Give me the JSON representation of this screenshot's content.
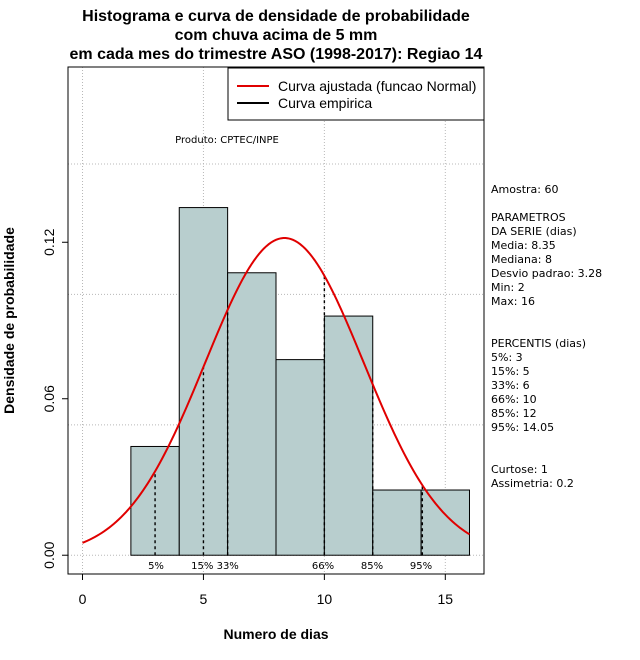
{
  "chart_data": {
    "type": "histogram",
    "title_lines": [
      "Histograma e curva de densidade de probabilidade",
      "com chuva acima de 5 mm",
      "em cada mes do trimestre ASO (1998-2017): Regiao 14"
    ],
    "xlabel": "Numero de dias",
    "ylabel": "Densidade de probabilidade",
    "xlim": [
      -0.6,
      16.6
    ],
    "ylim": [
      -0.0072,
      0.1872
    ],
    "x_ticks": [
      0,
      5,
      10,
      15
    ],
    "y_ticks": [
      0.0,
      0.06,
      0.12
    ],
    "y_tick_labels": [
      "0.00",
      "0.06",
      "0.12"
    ],
    "bins": [
      {
        "from": 2,
        "to": 4,
        "density": 0.0417
      },
      {
        "from": 4,
        "to": 6,
        "density": 0.1333
      },
      {
        "from": 6,
        "to": 8,
        "density": 0.1083
      },
      {
        "from": 8,
        "to": 10,
        "density": 0.075
      },
      {
        "from": 10,
        "to": 12,
        "density": 0.0917
      },
      {
        "from": 12,
        "to": 14,
        "density": 0.025
      },
      {
        "from": 14,
        "to": 16,
        "density": 0.025
      }
    ],
    "bar_color": "#b8cece",
    "normal_curve": {
      "mean": 8.35,
      "sd": 3.28,
      "from": 0,
      "to": 16,
      "color": "#e00000"
    },
    "percentile_lines": [
      {
        "label": "5%",
        "value": 3
      },
      {
        "label": "15%",
        "value": 5
      },
      {
        "label": "33%",
        "value": 6
      },
      {
        "label": "66%",
        "value": 10
      },
      {
        "label": "85%",
        "value": 12
      },
      {
        "label": "95%",
        "value": 14.05
      }
    ],
    "percentile_label_row": [
      "5%",
      "15% 33%",
      "66%",
      "85%",
      "95%"
    ],
    "legend": [
      {
        "label": "Curva ajustada (funcao Normal)",
        "color": "#e00000"
      },
      {
        "label": "Curva empirica",
        "color": "#000000"
      }
    ],
    "source_note": "Produto: CPTEC/INPE",
    "stats_panel": [
      "Amostra: 60",
      "",
      " PARAMETROS",
      "DA SERIE (dias)",
      "  Media: 8.35",
      "  Mediana: 8",
      "  Desvio padrao: 3.28",
      "  Min: 2",
      "  Max: 16",
      "",
      "",
      "PERCENTIS (dias)",
      "  5%: 3",
      "  15%: 5",
      "  33%: 6",
      "  66%: 10",
      "  85%: 12",
      "  95%: 14.05",
      "",
      "",
      "      Curtose: 1",
      "  Assimetria: 0.2"
    ]
  }
}
